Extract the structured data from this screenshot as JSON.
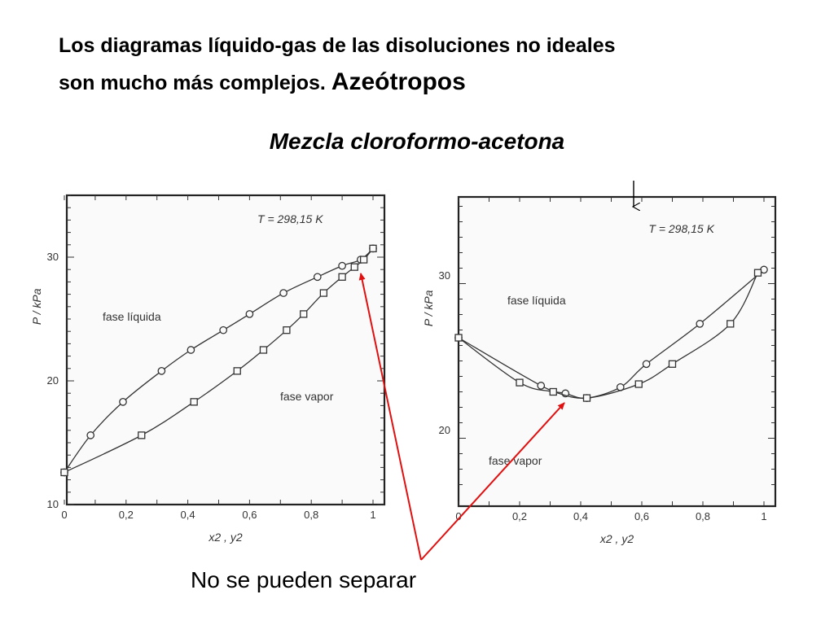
{
  "header": {
    "line1": "Los diagramas líquido-gas de las disoluciones no ideales",
    "line2_prefix": "son mucho más complejos. ",
    "line2_emphasis": "Azeótropos",
    "subtitle": "Mezcla cloroformo-acetona"
  },
  "caption": "No se pueden separar",
  "colors": {
    "arrow": "#e01010",
    "ink": "#333333",
    "plot_bg": "#fafafa"
  },
  "chart_data": [
    {
      "type": "line",
      "annotation_temperature": "T = 298,15 K",
      "region_labels": {
        "liquid": "fase líquida",
        "vapor": "fase vapor"
      },
      "xlabel": "x2 , y2",
      "ylabel": "P / kPa",
      "xlim": [
        0,
        1.02
      ],
      "ylim": [
        10,
        35
      ],
      "x_ticks": [
        "0",
        "0,2",
        "0,4",
        "0,6",
        "0,8",
        "1"
      ],
      "y_ticks": [
        "10",
        "20",
        "30"
      ],
      "series": [
        {
          "marker": "circle",
          "points": [
            [
              0,
              12.6
            ],
            [
              0.085,
              15.6
            ],
            [
              0.19,
              18.3
            ],
            [
              0.315,
              20.8
            ],
            [
              0.41,
              22.5
            ],
            [
              0.515,
              24.1
            ],
            [
              0.6,
              25.4
            ],
            [
              0.71,
              27.1
            ],
            [
              0.82,
              28.4
            ],
            [
              0.9,
              29.3
            ],
            [
              0.96,
              29.8
            ],
            [
              1.0,
              30.7
            ]
          ]
        },
        {
          "marker": "square",
          "points": [
            [
              0,
              12.6
            ],
            [
              0.25,
              15.6
            ],
            [
              0.42,
              18.3
            ],
            [
              0.56,
              20.8
            ],
            [
              0.645,
              22.5
            ],
            [
              0.72,
              24.1
            ],
            [
              0.775,
              25.4
            ],
            [
              0.84,
              27.1
            ],
            [
              0.9,
              28.4
            ],
            [
              0.94,
              29.2
            ],
            [
              0.97,
              29.8
            ],
            [
              1.0,
              30.7
            ]
          ]
        }
      ]
    },
    {
      "type": "line",
      "annotation_temperature": "T = 298,15 K",
      "region_labels": {
        "liquid": "fase líquida",
        "vapor": "fase vapor"
      },
      "xlabel": "x2 , y2",
      "ylabel": "P / kPa",
      "xlim": [
        0,
        1.02
      ],
      "ylim": [
        16.5,
        36
      ],
      "x_ticks": [
        "0",
        "0,2",
        "0,4",
        "0,6",
        "0,8",
        "1"
      ],
      "y_ticks": [
        "20",
        "30"
      ],
      "series": [
        {
          "marker": "circle",
          "points": [
            [
              0,
              26.0
            ],
            [
              0.27,
              22.9
            ],
            [
              0.35,
              22.4
            ],
            [
              0.42,
              22.1
            ],
            [
              0.53,
              22.8
            ],
            [
              0.615,
              24.3
            ],
            [
              0.79,
              26.9
            ],
            [
              1.0,
              30.4
            ]
          ]
        },
        {
          "marker": "square",
          "points": [
            [
              0,
              26.0
            ],
            [
              0.2,
              23.1
            ],
            [
              0.31,
              22.5
            ],
            [
              0.42,
              22.1
            ],
            [
              0.59,
              23.0
            ],
            [
              0.7,
              24.3
            ],
            [
              0.89,
              26.9
            ],
            [
              0.98,
              30.2
            ]
          ]
        }
      ]
    }
  ]
}
